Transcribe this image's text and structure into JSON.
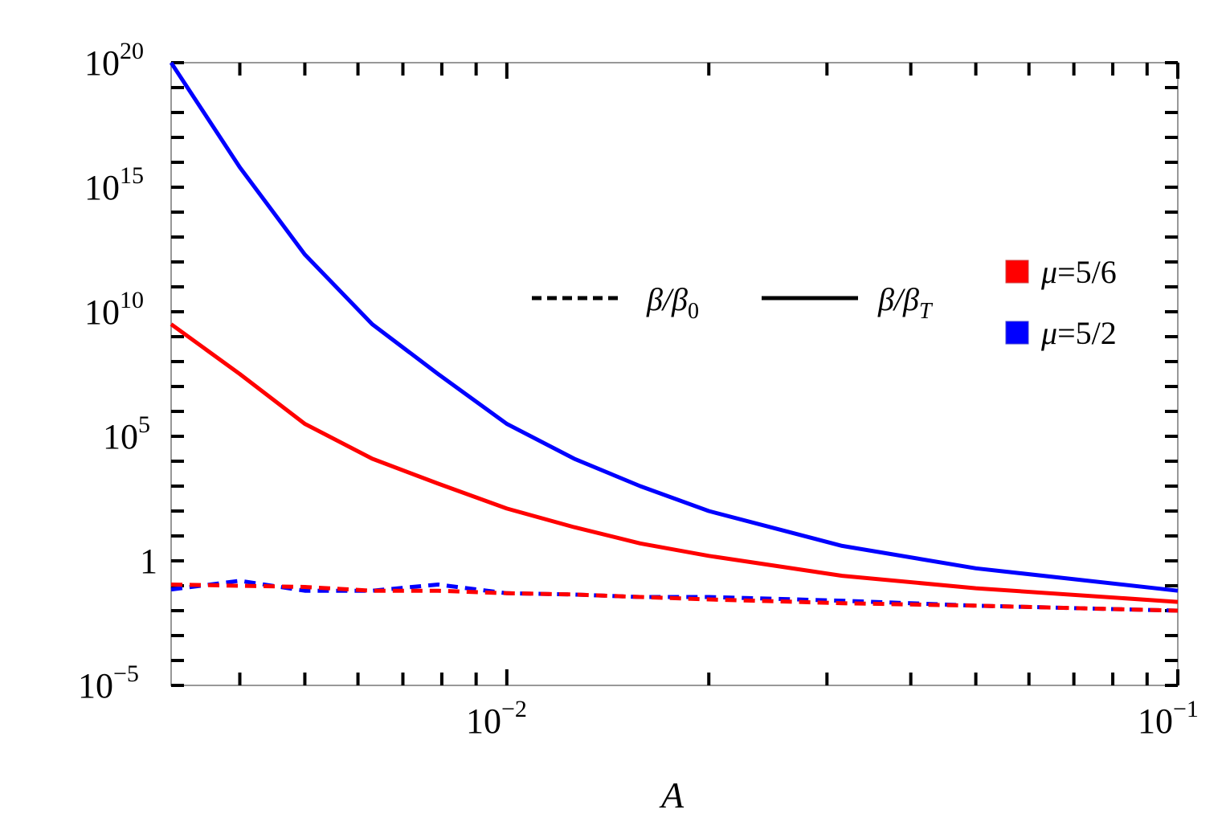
{
  "chart_data": {
    "type": "line",
    "title": "",
    "xlabel": "A",
    "ylabel": "",
    "xscale": "log",
    "yscale": "log",
    "xlim": [
      0.00316,
      0.1
    ],
    "ylim": [
      1e-05,
      1e+20
    ],
    "x_ticks": [
      {
        "value": 0.01,
        "label": "10",
        "sup": "−2"
      },
      {
        "value": 0.1,
        "label": "10",
        "sup": "−1"
      }
    ],
    "y_ticks": [
      {
        "value": 1e-05,
        "label": "10",
        "sup": "−5"
      },
      {
        "value": 1,
        "label": "1",
        "sup": ""
      },
      {
        "value": 100000.0,
        "label": "10",
        "sup": "5"
      },
      {
        "value": 10000000000.0,
        "label": "10",
        "sup": "10"
      },
      {
        "value": 1000000000000000.0,
        "label": "10",
        "sup": "15"
      },
      {
        "value": 1e+20,
        "label": "10",
        "sup": "20"
      }
    ],
    "grid": false,
    "x": [
      0.00316,
      0.004,
      0.005,
      0.0063,
      0.0079,
      0.01,
      0.0126,
      0.0158,
      0.02,
      0.0316,
      0.05,
      0.1
    ],
    "series": [
      {
        "name": "β/β_T, μ=5/6",
        "color": "#ff0000",
        "style": "solid",
        "log10_values": [
          9.5,
          7.5,
          5.5,
          4.1,
          3.1,
          2.1,
          1.35,
          0.7,
          0.2,
          -0.6,
          -1.1,
          -1.65
        ]
      },
      {
        "name": "β/β_T, μ=5/2",
        "color": "#0000ff",
        "style": "solid",
        "log10_values": [
          20.0,
          15.8,
          12.3,
          9.5,
          7.5,
          5.5,
          4.1,
          3.0,
          2.0,
          0.6,
          -0.3,
          -1.2
        ]
      },
      {
        "name": "β/β_0, μ=5/6",
        "color": "#ff0000",
        "style": "dashed",
        "log10_values": [
          -0.95,
          -1.0,
          -1.05,
          -1.2,
          -1.2,
          -1.3,
          -1.35,
          -1.45,
          -1.55,
          -1.7,
          -1.8,
          -2.0
        ]
      },
      {
        "name": "β/β_0, μ=5/2",
        "color": "#0000ff",
        "style": "dashed",
        "log10_values": [
          -1.15,
          -0.8,
          -1.2,
          -1.2,
          -0.95,
          -1.3,
          -1.35,
          -1.45,
          -1.45,
          -1.6,
          -1.8,
          -2.0
        ]
      }
    ],
    "legend": {
      "linestyle": [
        {
          "label": "β/β",
          "sub": "0",
          "style": "dashed"
        },
        {
          "label": "β/β",
          "sub": "T",
          "style": "solid"
        }
      ],
      "color": [
        {
          "label": "μ=5/6",
          "color": "#ff0000"
        },
        {
          "label": "μ=5/2",
          "color": "#0000ff"
        }
      ],
      "position": "upper right inside"
    }
  },
  "labels": {
    "xaxis": "A",
    "xt1": "10",
    "xt1sup": "−2",
    "xt2": "10",
    "xt2sup": "−1",
    "yt_m5": "10",
    "yt_m5sup": "−5",
    "yt_0": "1",
    "yt_5": "10",
    "yt_5sup": "5",
    "yt_10": "10",
    "yt_10sup": "10",
    "yt_15": "10",
    "yt_15sup": "15",
    "yt_20": "10",
    "yt_20sup": "20",
    "leg_dash": "β/β",
    "leg_dash_sub": "0",
    "leg_solid": "β/β",
    "leg_solid_sub": "T",
    "leg_mu1_sym": "μ",
    "leg_mu1_val": "=5/6",
    "leg_mu2_sym": "μ",
    "leg_mu2_val": "=5/2"
  }
}
